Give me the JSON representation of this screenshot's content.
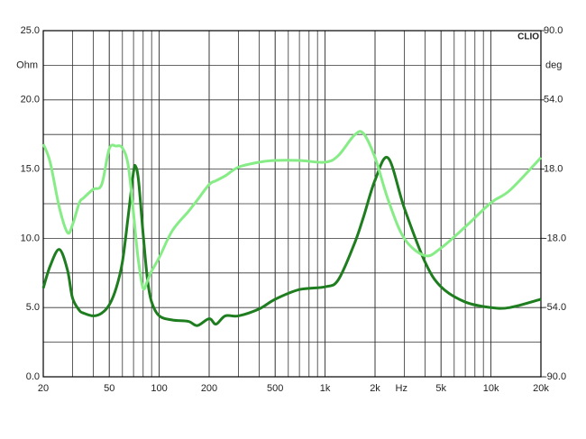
{
  "chart_data": {
    "type": "line",
    "x_label": "Hz",
    "y_label": "Ohm",
    "y2_label": "deg",
    "brand": "CLIO",
    "x_log": true,
    "grid": true,
    "x": [
      20,
      22,
      25,
      28,
      30,
      33,
      35,
      40,
      45,
      50,
      55,
      60,
      65,
      70,
      72,
      75,
      80,
      85,
      90,
      100,
      120,
      150,
      170,
      200,
      220,
      250,
      300,
      400,
      500,
      700,
      1000,
      1200,
      1500,
      1700,
      2000,
      2400,
      3000,
      4000,
      5000,
      7000,
      10000,
      13000,
      20000
    ],
    "series": [
      {
        "color": "#1e7d1e",
        "axis": "y",
        "values": [
          6.4,
          8.0,
          9.2,
          7.7,
          5.7,
          4.8,
          4.6,
          4.4,
          4.6,
          5.2,
          6.4,
          8.3,
          11.6,
          14.8,
          15.2,
          14.2,
          10.3,
          7.0,
          5.4,
          4.4,
          4.1,
          4.0,
          3.7,
          4.2,
          3.8,
          4.4,
          4.4,
          4.9,
          5.6,
          6.3,
          6.5,
          7.0,
          9.6,
          11.5,
          14.2,
          15.8,
          12.2,
          8.3,
          6.5,
          5.4,
          5.0,
          5.0,
          5.6
        ]
      },
      {
        "color": "#86ec86",
        "axis": "y2",
        "values": [
          31,
          21.6,
          -2,
          -15,
          -11,
          0.5,
          3,
          7.5,
          10,
          28.6,
          30,
          29,
          20,
          -5,
          -16,
          -30,
          -44,
          -40,
          -35,
          -28,
          -14,
          -4,
          2,
          10,
          12,
          14.5,
          19,
          21.6,
          22.5,
          22.5,
          21.6,
          25,
          35.6,
          36.6,
          24,
          2,
          -18,
          -27,
          -23,
          -12,
          0.5,
          7,
          24
        ]
      }
    ],
    "xlim": [
      20,
      20000
    ],
    "xticks": [
      20,
      50,
      100,
      200,
      500,
      {
        "value": 1000,
        "label": "1k"
      },
      {
        "value": 2000,
        "label": "2k"
      },
      {
        "value": 5000,
        "label": "5k"
      },
      {
        "value": 10000,
        "label": "10k"
      },
      {
        "value": 20000,
        "label": "20k"
      }
    ],
    "ylim": [
      0,
      25
    ],
    "yticks": [
      {
        "value": 0,
        "label": "0.0"
      },
      {
        "value": 5,
        "label": "5.0"
      },
      {
        "value": 10,
        "label": "10.0"
      },
      {
        "value": 15,
        "label": "15.0"
      },
      {
        "value": 20,
        "label": "20.0"
      },
      {
        "value": 25,
        "label": "25.0"
      }
    ],
    "y2lim": [
      -90,
      90
    ],
    "y2ticks": [
      {
        "value": -90,
        "label": "-90.0"
      },
      {
        "value": -54,
        "label": "-54.0"
      },
      {
        "value": -18,
        "label": "-18.0"
      },
      {
        "value": 18,
        "label": "18.0"
      },
      {
        "value": 54,
        "label": "54.0"
      },
      {
        "value": 90,
        "label": "90.0"
      }
    ]
  }
}
